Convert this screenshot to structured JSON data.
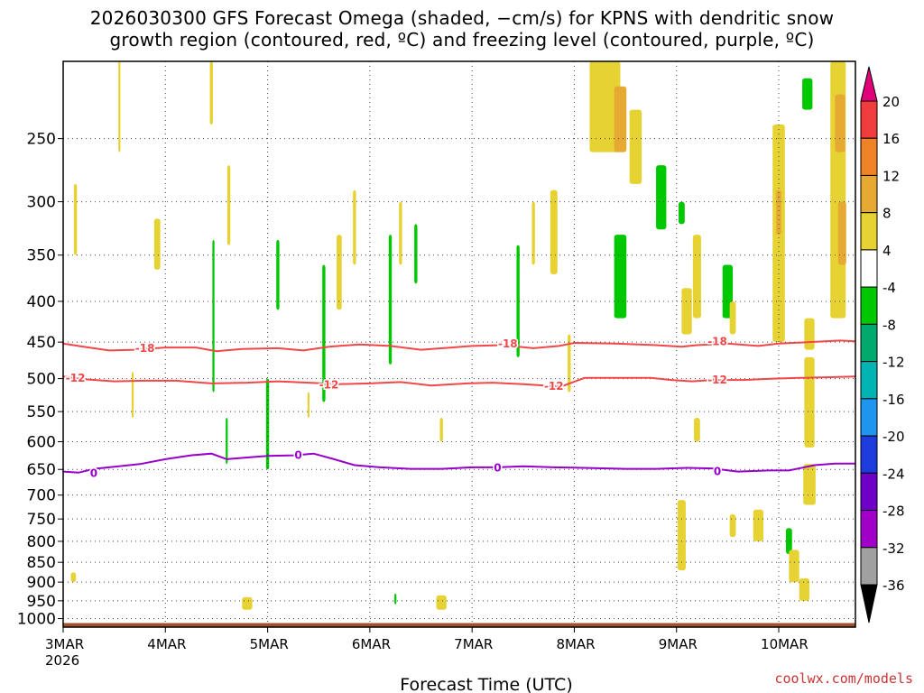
{
  "title_line1": "2026030300 GFS Forecast Omega (shaded, −cm/s) for KPNS with dendritic snow",
  "title_line2": "growth region (contoured, red, ºC) and freezing level (contoured, purple, ºC)",
  "credit": "coolwx.com/models",
  "chart_data": {
    "type": "heatmap",
    "title": "2026030300 GFS Forecast Omega (shaded, −cm/s) for KPNS with dendritic snow growth region (contoured, red, ºC) and freezing level (contoured, purple, ºC)",
    "xlabel": "Forecast Time (UTC)",
    "ylabel": "",
    "x_ticks": [
      "3MAR",
      "4MAR",
      "5MAR",
      "6MAR",
      "7MAR",
      "8MAR",
      "9MAR",
      "10MAR"
    ],
    "x_year_label": "2026",
    "x_range_days": [
      0,
      7.75
    ],
    "y_scale": "log-pressure",
    "y_ticks": [
      250,
      300,
      350,
      400,
      450,
      500,
      550,
      600,
      650,
      700,
      750,
      800,
      850,
      900,
      950,
      1000
    ],
    "y_range_hpa": [
      200,
      1025
    ],
    "grid": true,
    "colorbar": {
      "levels": [
        20,
        16,
        12,
        8,
        4,
        -4,
        -8,
        -12,
        -16,
        -20,
        -24,
        -28,
        -32,
        -36
      ],
      "colors": [
        "#e0007a",
        "#f03c3c",
        "#f08228",
        "#e6aa32",
        "#e6d232",
        "#ffffff",
        "#00c800",
        "#00aa6e",
        "#00b4b4",
        "#1e96f0",
        "#1e3cdc",
        "#6e00c8",
        "#a000c8",
        "#a0a0a0",
        "#000000"
      ]
    },
    "contours": [
      {
        "name": "-18",
        "color": "#f04848",
        "points": [
          [
            0.0,
            452
          ],
          [
            0.2,
            456
          ],
          [
            0.45,
            461
          ],
          [
            0.7,
            460
          ],
          [
            1.0,
            457
          ],
          [
            1.3,
            457
          ],
          [
            1.5,
            462
          ],
          [
            1.75,
            459
          ],
          [
            2.1,
            458
          ],
          [
            2.35,
            461
          ],
          [
            2.6,
            456
          ],
          [
            2.9,
            453
          ],
          [
            3.2,
            455
          ],
          [
            3.5,
            460
          ],
          [
            3.8,
            457
          ],
          [
            4.0,
            455
          ],
          [
            4.3,
            454
          ],
          [
            4.6,
            458
          ],
          [
            4.85,
            455
          ],
          [
            5.0,
            451
          ],
          [
            5.4,
            452
          ],
          [
            5.8,
            454
          ],
          [
            6.05,
            456
          ],
          [
            6.2,
            454
          ],
          [
            6.5,
            452
          ],
          [
            6.8,
            455
          ],
          [
            7.0,
            452
          ],
          [
            7.3,
            450
          ],
          [
            7.6,
            448
          ],
          [
            7.75,
            449
          ]
        ]
      },
      {
        "name": "-12",
        "color": "#f04848",
        "points": [
          [
            0.0,
            497
          ],
          [
            0.2,
            501
          ],
          [
            0.5,
            504
          ],
          [
            0.8,
            503
          ],
          [
            1.1,
            503
          ],
          [
            1.45,
            507
          ],
          [
            1.8,
            506
          ],
          [
            2.1,
            504
          ],
          [
            2.4,
            506
          ],
          [
            2.7,
            508
          ],
          [
            3.0,
            507
          ],
          [
            3.3,
            505
          ],
          [
            3.6,
            510
          ],
          [
            3.95,
            507
          ],
          [
            4.2,
            506
          ],
          [
            4.5,
            508
          ],
          [
            4.8,
            511
          ],
          [
            4.9,
            510
          ],
          [
            5.1,
            499
          ],
          [
            5.4,
            499
          ],
          [
            5.75,
            499
          ],
          [
            5.95,
            502
          ],
          [
            6.15,
            504
          ],
          [
            6.35,
            502
          ],
          [
            6.65,
            502
          ],
          [
            6.95,
            500
          ],
          [
            7.2,
            499
          ],
          [
            7.5,
            498
          ],
          [
            7.75,
            497
          ]
        ]
      },
      {
        "name": "0",
        "color": "#9600c8",
        "points": [
          [
            0.0,
            654
          ],
          [
            0.15,
            656
          ],
          [
            0.3,
            649
          ],
          [
            0.5,
            645
          ],
          [
            0.75,
            640
          ],
          [
            1.0,
            631
          ],
          [
            1.25,
            624
          ],
          [
            1.45,
            621
          ],
          [
            1.6,
            631
          ],
          [
            1.8,
            628
          ],
          [
            2.0,
            625
          ],
          [
            2.25,
            624
          ],
          [
            2.45,
            621
          ],
          [
            2.65,
            631
          ],
          [
            2.85,
            642
          ],
          [
            3.1,
            646
          ],
          [
            3.4,
            649
          ],
          [
            3.7,
            649
          ],
          [
            4.0,
            646
          ],
          [
            4.25,
            646
          ],
          [
            4.5,
            644
          ],
          [
            4.8,
            646
          ],
          [
            5.1,
            647
          ],
          [
            5.5,
            649
          ],
          [
            5.8,
            649
          ],
          [
            6.1,
            647
          ],
          [
            6.35,
            648
          ],
          [
            6.6,
            654
          ],
          [
            6.9,
            652
          ],
          [
            7.1,
            652
          ],
          [
            7.35,
            642
          ],
          [
            7.55,
            639
          ],
          [
            7.75,
            639
          ]
        ]
      }
    ],
    "contour_labels": [
      {
        "text": "-18",
        "x": 0.8,
        "p": 458
      },
      {
        "text": "-18",
        "x": 4.35,
        "p": 452
      },
      {
        "text": "-18",
        "x": 6.4,
        "p": 449
      },
      {
        "text": "-12",
        "x": 0.12,
        "p": 499
      },
      {
        "text": "-12",
        "x": 2.6,
        "p": 509
      },
      {
        "text": "-12",
        "x": 4.8,
        "p": 511
      },
      {
        "text": "-12",
        "x": 6.4,
        "p": 502
      },
      {
        "text": "0",
        "x": 0.3,
        "p": 657
      },
      {
        "text": "0",
        "x": 2.3,
        "p": 624
      },
      {
        "text": "0",
        "x": 4.25,
        "p": 647
      },
      {
        "text": "0",
        "x": 6.4,
        "p": 654
      }
    ],
    "shaded_cells": [
      {
        "x": 0.55,
        "p0": 200,
        "p1": 260,
        "w": 0.02,
        "v": 6
      },
      {
        "x": 0.12,
        "p0": 285,
        "p1": 350,
        "w": 0.03,
        "v": 6
      },
      {
        "x": 0.68,
        "p0": 490,
        "p1": 560,
        "w": 0.02,
        "v": 6
      },
      {
        "x": 0.92,
        "p0": 315,
        "p1": 365,
        "w": 0.06,
        "v": 6
      },
      {
        "x": 1.45,
        "p0": 200,
        "p1": 240,
        "w": 0.03,
        "v": 6
      },
      {
        "x": 1.62,
        "p0": 270,
        "p1": 340,
        "w": 0.03,
        "v": 6
      },
      {
        "x": 1.47,
        "p0": 335,
        "p1": 520,
        "w": 0.02,
        "v": -6
      },
      {
        "x": 1.6,
        "p0": 560,
        "p1": 640,
        "w": 0.02,
        "v": -6
      },
      {
        "x": 2.0,
        "p0": 500,
        "p1": 650,
        "w": 0.03,
        "v": -6
      },
      {
        "x": 2.4,
        "p0": 520,
        "p1": 560,
        "w": 0.02,
        "v": 6
      },
      {
        "x": 2.1,
        "p0": 335,
        "p1": 410,
        "w": 0.03,
        "v": -6
      },
      {
        "x": 2.55,
        "p0": 360,
        "p1": 535,
        "w": 0.03,
        "v": -6
      },
      {
        "x": 2.7,
        "p0": 330,
        "p1": 410,
        "w": 0.05,
        "v": 6
      },
      {
        "x": 2.85,
        "p0": 290,
        "p1": 360,
        "w": 0.03,
        "v": 6
      },
      {
        "x": 3.2,
        "p0": 330,
        "p1": 480,
        "w": 0.03,
        "v": -6
      },
      {
        "x": 3.3,
        "p0": 300,
        "p1": 360,
        "w": 0.03,
        "v": 6
      },
      {
        "x": 3.45,
        "p0": 320,
        "p1": 380,
        "w": 0.03,
        "v": -6
      },
      {
        "x": 4.45,
        "p0": 340,
        "p1": 470,
        "w": 0.03,
        "v": -6
      },
      {
        "x": 4.6,
        "p0": 300,
        "p1": 360,
        "w": 0.03,
        "v": 6
      },
      {
        "x": 4.8,
        "p0": 290,
        "p1": 370,
        "w": 0.07,
        "v": 6
      },
      {
        "x": 4.95,
        "p0": 440,
        "p1": 520,
        "w": 0.03,
        "v": 6
      },
      {
        "x": 5.3,
        "p0": 200,
        "p1": 260,
        "w": 0.3,
        "v": 6
      },
      {
        "x": 5.45,
        "p0": 215,
        "p1": 260,
        "w": 0.12,
        "v": 10
      },
      {
        "x": 5.6,
        "p0": 230,
        "p1": 285,
        "w": 0.12,
        "v": 6
      },
      {
        "x": 5.45,
        "p0": 330,
        "p1": 420,
        "w": 0.12,
        "v": -6
      },
      {
        "x": 5.85,
        "p0": 270,
        "p1": 325,
        "w": 0.1,
        "v": -6
      },
      {
        "x": 6.05,
        "p0": 300,
        "p1": 320,
        "w": 0.06,
        "v": -6
      },
      {
        "x": 6.2,
        "p0": 330,
        "p1": 420,
        "w": 0.08,
        "v": 6
      },
      {
        "x": 6.1,
        "p0": 385,
        "p1": 440,
        "w": 0.1,
        "v": 6
      },
      {
        "x": 6.5,
        "p0": 360,
        "p1": 420,
        "w": 0.1,
        "v": -6
      },
      {
        "x": 6.55,
        "p0": 400,
        "p1": 440,
        "w": 0.06,
        "v": 6
      },
      {
        "x": 6.2,
        "p0": 560,
        "p1": 600,
        "w": 0.06,
        "v": 6
      },
      {
        "x": 6.05,
        "p0": 710,
        "p1": 870,
        "w": 0.08,
        "v": 6
      },
      {
        "x": 6.55,
        "p0": 740,
        "p1": 790,
        "w": 0.06,
        "v": 6
      },
      {
        "x": 6.8,
        "p0": 730,
        "p1": 800,
        "w": 0.1,
        "v": 6
      },
      {
        "x": 7.0,
        "p0": 240,
        "p1": 450,
        "w": 0.12,
        "v": 6
      },
      {
        "x": 7.0,
        "p0": 290,
        "p1": 330,
        "w": 0.05,
        "v": 10
      },
      {
        "x": 7.3,
        "p0": 420,
        "p1": 460,
        "w": 0.1,
        "v": 6
      },
      {
        "x": 7.3,
        "p0": 470,
        "p1": 610,
        "w": 0.1,
        "v": 6
      },
      {
        "x": 7.1,
        "p0": 770,
        "p1": 830,
        "w": 0.06,
        "v": -6
      },
      {
        "x": 7.15,
        "p0": 820,
        "p1": 900,
        "w": 0.1,
        "v": 6
      },
      {
        "x": 7.3,
        "p0": 640,
        "p1": 720,
        "w": 0.12,
        "v": 6
      },
      {
        "x": 7.58,
        "p0": 200,
        "p1": 420,
        "w": 0.15,
        "v": 6
      },
      {
        "x": 7.28,
        "p0": 210,
        "p1": 230,
        "w": 0.1,
        "v": -6
      },
      {
        "x": 7.6,
        "p0": 220,
        "p1": 260,
        "w": 0.1,
        "v": 10
      },
      {
        "x": 7.62,
        "p0": 300,
        "p1": 360,
        "w": 0.08,
        "v": 10
      },
      {
        "x": 0.1,
        "p0": 875,
        "p1": 900,
        "w": 0.05,
        "v": 6
      },
      {
        "x": 1.8,
        "p0": 940,
        "p1": 975,
        "w": 0.1,
        "v": 6
      },
      {
        "x": 3.7,
        "p0": 935,
        "p1": 975,
        "w": 0.1,
        "v": 6
      },
      {
        "x": 3.7,
        "p0": 560,
        "p1": 600,
        "w": 0.03,
        "v": 6
      },
      {
        "x": 3.25,
        "p0": 930,
        "p1": 960,
        "w": 0.02,
        "v": -6
      },
      {
        "x": 7.25,
        "p0": 890,
        "p1": 950,
        "w": 0.1,
        "v": 6
      }
    ]
  }
}
